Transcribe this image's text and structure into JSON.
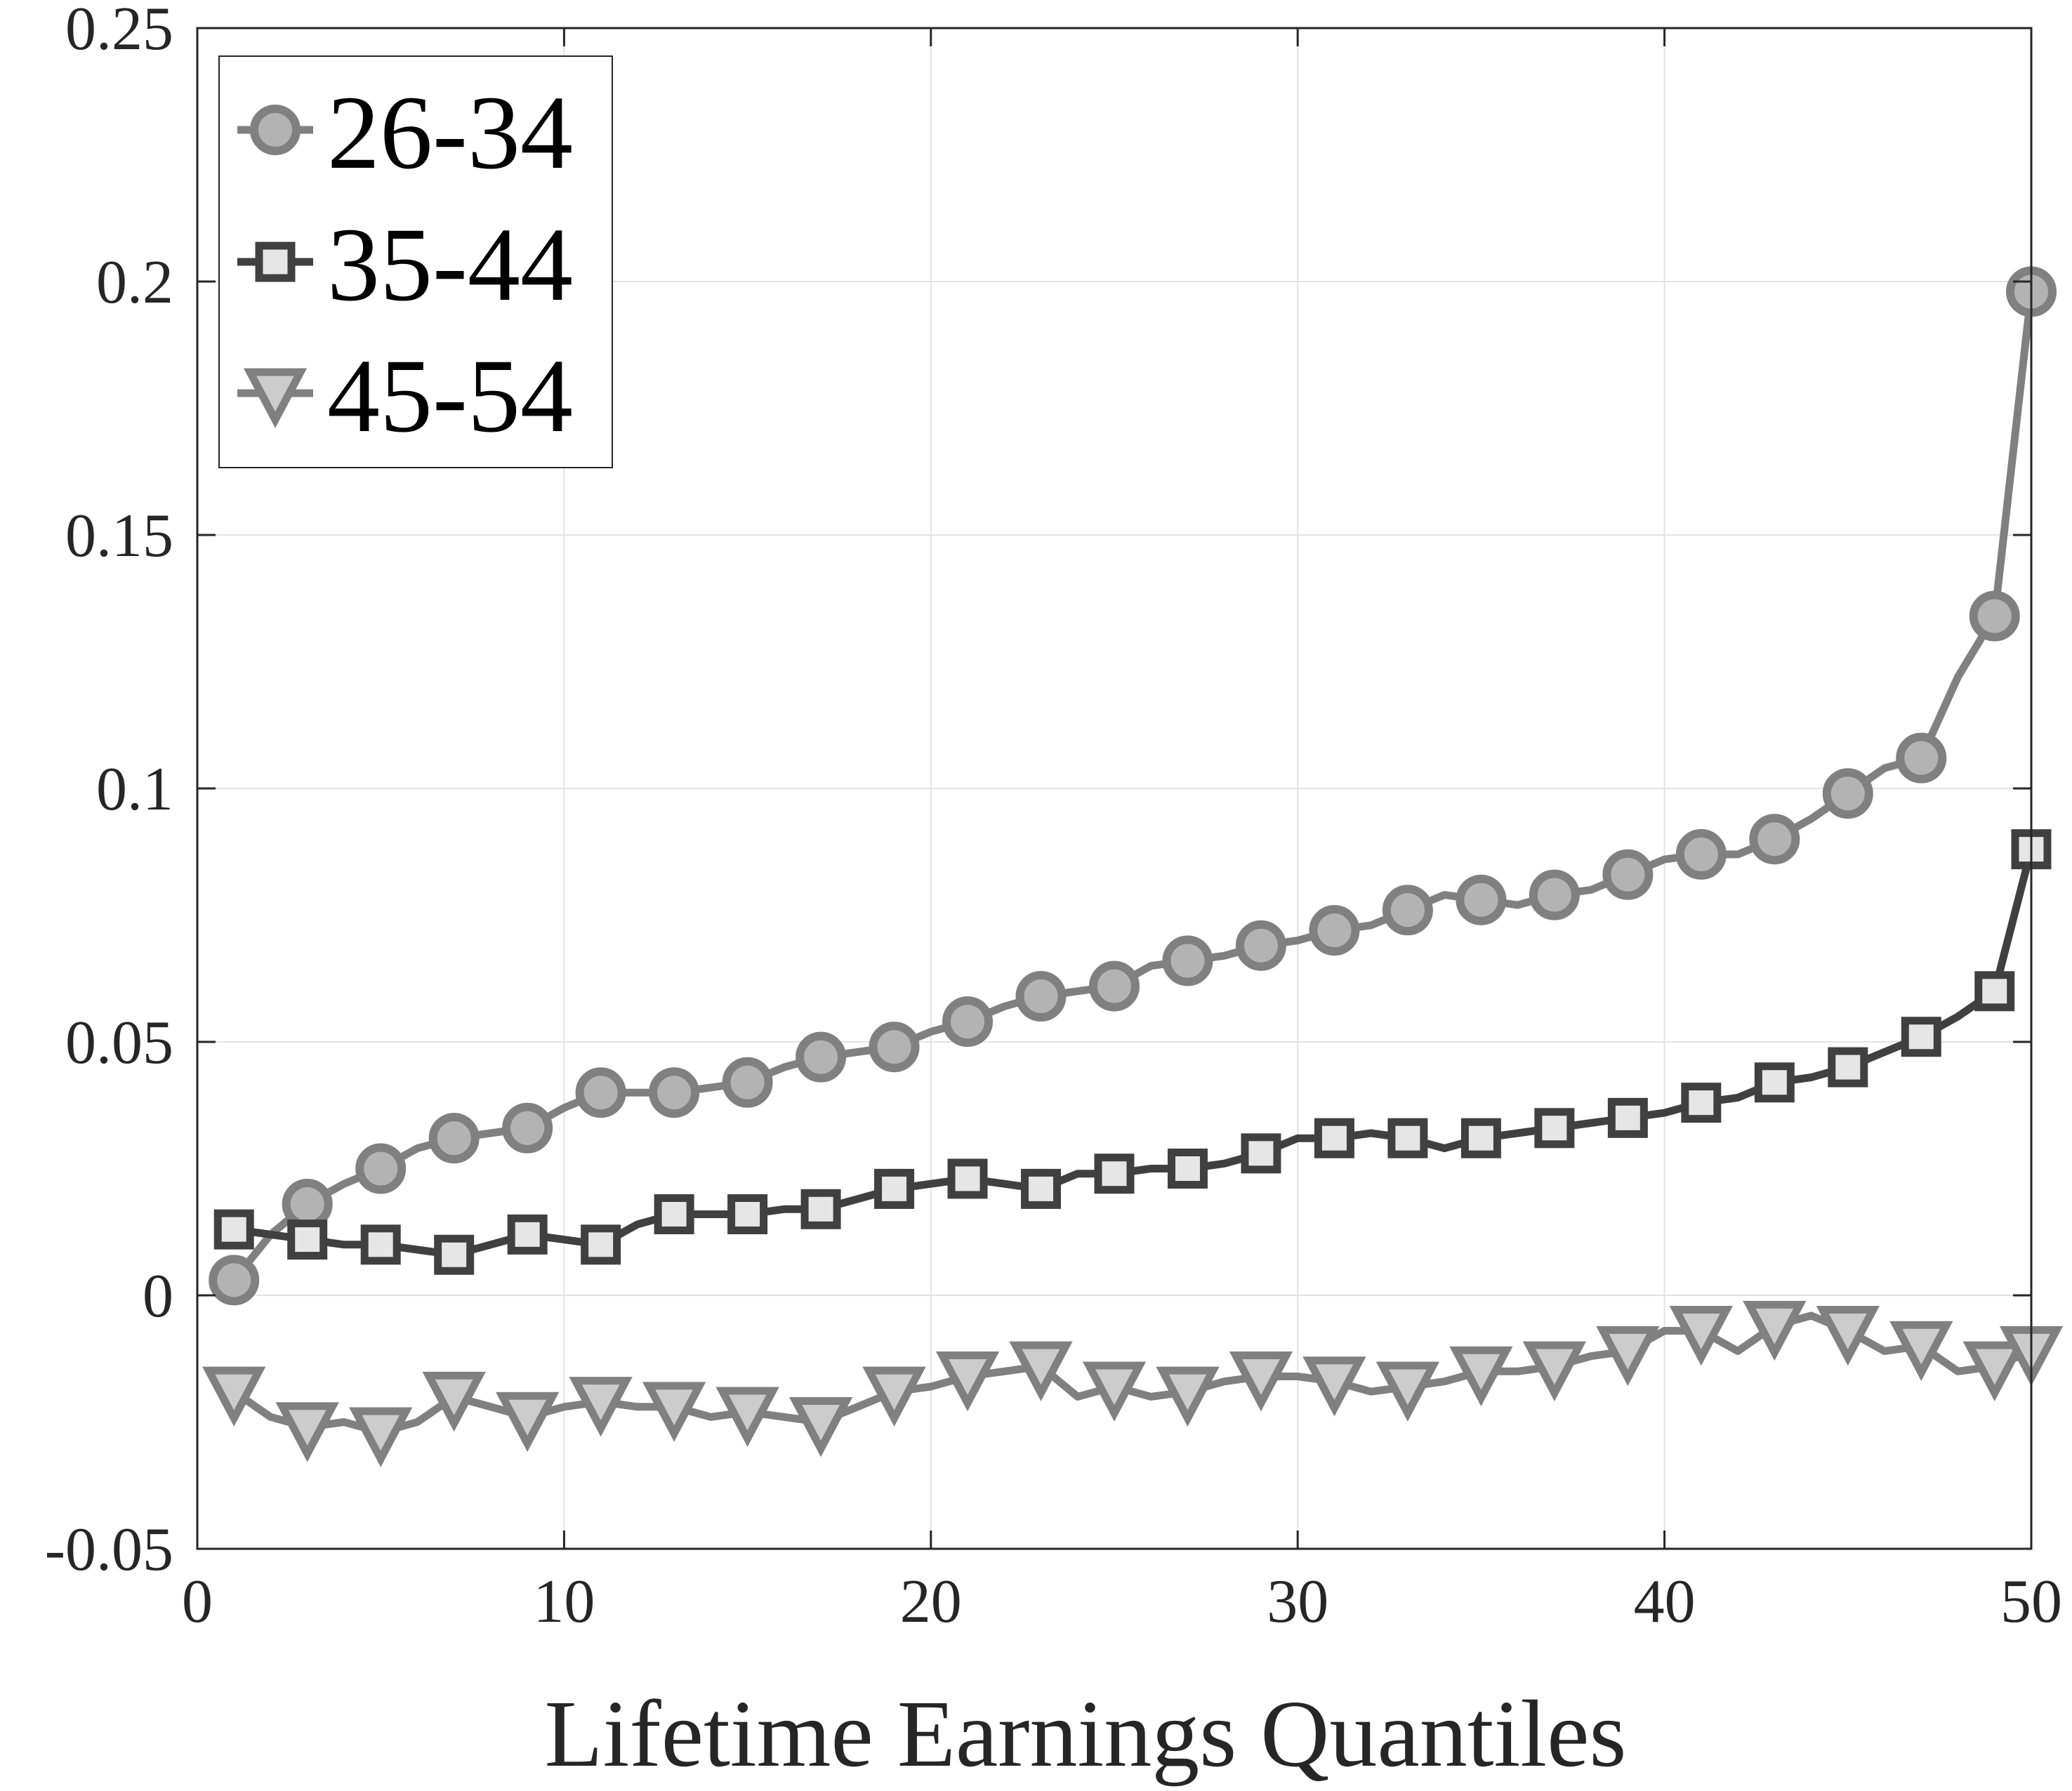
{
  "chart_data": {
    "type": "line",
    "title": "",
    "xlabel": "Lifetime Earnings Quantiles",
    "ylabel": "",
    "xlim": [
      0,
      50
    ],
    "ylim": [
      -0.05,
      0.25
    ],
    "x_ticks": [
      0,
      10,
      20,
      30,
      40,
      50
    ],
    "x_tick_labels": [
      "0",
      "10",
      "20",
      "30",
      "40",
      "50"
    ],
    "y_ticks": [
      -0.05,
      0,
      0.05,
      0.1,
      0.15,
      0.2,
      0.25
    ],
    "y_tick_labels": [
      "-0.05",
      "0",
      "0.05",
      "0.1",
      "0.15",
      "0.2",
      "0.25"
    ],
    "grid": true,
    "legend_position": "top-left",
    "series": [
      {
        "name": "26-34",
        "marker": "circle",
        "line_color": "#808080",
        "marker_face": "#b3b3b3",
        "marker_every": 2,
        "x": [
          1,
          2,
          3,
          4,
          5,
          6,
          7,
          8,
          9,
          10,
          11,
          12,
          13,
          14,
          15,
          16,
          17,
          18,
          19,
          20,
          21,
          22,
          23,
          24,
          25,
          26,
          27,
          28,
          29,
          30,
          31,
          32,
          33,
          34,
          35,
          36,
          37,
          38,
          39,
          40,
          41,
          42,
          43,
          44,
          45,
          46,
          47,
          48,
          49,
          50
        ],
        "values": [
          0.003,
          0.012,
          0.018,
          0.022,
          0.025,
          0.029,
          0.031,
          0.032,
          0.033,
          0.037,
          0.04,
          0.04,
          0.04,
          0.041,
          0.042,
          0.045,
          0.047,
          0.048,
          0.049,
          0.052,
          0.054,
          0.057,
          0.059,
          0.06,
          0.061,
          0.065,
          0.066,
          0.067,
          0.069,
          0.07,
          0.072,
          0.073,
          0.076,
          0.079,
          0.078,
          0.077,
          0.079,
          0.08,
          0.083,
          0.086,
          0.087,
          0.087,
          0.09,
          0.094,
          0.099,
          0.104,
          0.106,
          0.122,
          0.134,
          0.198
        ]
      },
      {
        "name": "35-44",
        "marker": "square",
        "line_color": "#404040",
        "marker_face": "#e6e6e6",
        "marker_every": 2,
        "x": [
          1,
          2,
          3,
          4,
          5,
          6,
          7,
          8,
          9,
          10,
          11,
          12,
          13,
          14,
          15,
          16,
          17,
          18,
          19,
          20,
          21,
          22,
          23,
          24,
          25,
          26,
          27,
          28,
          29,
          30,
          31,
          32,
          33,
          34,
          35,
          36,
          37,
          38,
          39,
          40,
          41,
          42,
          43,
          44,
          45,
          46,
          47,
          48,
          49,
          50
        ],
        "values": [
          0.013,
          0.012,
          0.011,
          0.01,
          0.01,
          0.009,
          0.008,
          0.01,
          0.012,
          0.011,
          0.01,
          0.014,
          0.016,
          0.016,
          0.016,
          0.017,
          0.017,
          0.019,
          0.021,
          0.022,
          0.023,
          0.022,
          0.021,
          0.024,
          0.024,
          0.025,
          0.025,
          0.026,
          0.028,
          0.031,
          0.031,
          0.032,
          0.031,
          0.029,
          0.031,
          0.032,
          0.033,
          0.034,
          0.035,
          0.036,
          0.038,
          0.039,
          0.042,
          0.043,
          0.045,
          0.048,
          0.051,
          0.055,
          0.06,
          0.088
        ]
      },
      {
        "name": "45-54",
        "marker": "triangle-down",
        "line_color": "#808080",
        "marker_face": "#cccccc",
        "marker_every": 2,
        "x": [
          1,
          2,
          3,
          4,
          5,
          6,
          7,
          8,
          9,
          10,
          11,
          12,
          13,
          14,
          15,
          16,
          17,
          18,
          19,
          20,
          21,
          22,
          23,
          24,
          25,
          26,
          27,
          28,
          29,
          30,
          31,
          32,
          33,
          34,
          35,
          36,
          37,
          38,
          39,
          40,
          41,
          42,
          43,
          44,
          45,
          46,
          47,
          48,
          49,
          50
        ],
        "values": [
          -0.019,
          -0.024,
          -0.026,
          -0.025,
          -0.027,
          -0.025,
          -0.02,
          -0.022,
          -0.024,
          -0.022,
          -0.021,
          -0.022,
          -0.022,
          -0.024,
          -0.023,
          -0.024,
          -0.025,
          -0.022,
          -0.019,
          -0.018,
          -0.016,
          -0.015,
          -0.014,
          -0.02,
          -0.018,
          -0.02,
          -0.019,
          -0.017,
          -0.016,
          -0.016,
          -0.017,
          -0.019,
          -0.018,
          -0.017,
          -0.015,
          -0.015,
          -0.014,
          -0.012,
          -0.011,
          -0.007,
          -0.007,
          -0.011,
          -0.006,
          -0.004,
          -0.007,
          -0.011,
          -0.01,
          -0.015,
          -0.014,
          -0.011
        ]
      }
    ]
  }
}
